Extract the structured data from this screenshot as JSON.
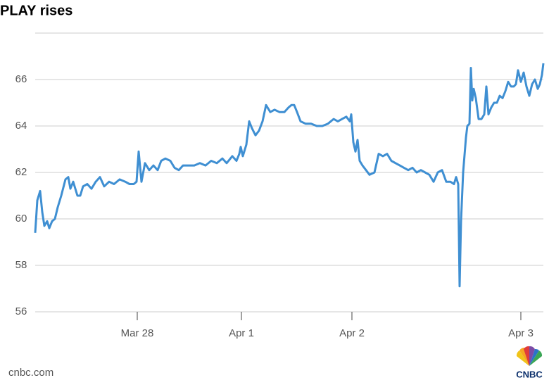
{
  "chart_data": {
    "type": "line",
    "title": "PLAY rises",
    "source": "cnbc.com",
    "logo": "CNBC",
    "x": [
      0,
      3,
      7,
      10,
      13,
      17,
      20,
      24,
      28,
      32,
      37,
      43,
      47,
      50,
      54,
      60,
      64,
      68,
      74,
      80,
      86,
      92,
      98,
      105,
      112,
      120,
      128,
      134,
      140,
      144,
      147,
      151,
      156,
      162,
      168,
      174,
      179,
      185,
      192,
      198,
      204,
      210,
      218,
      226,
      234,
      242,
      250,
      258,
      266,
      272,
      280,
      286,
      290,
      292,
      295,
      300,
      304,
      308,
      313,
      318,
      323,
      328,
      334,
      340,
      347,
      354,
      360,
      364,
      368,
      372,
      377,
      384,
      392,
      400,
      408,
      416,
      424,
      430,
      436,
      442,
      447,
      449,
      452,
      455,
      458,
      461,
      465,
      470,
      475,
      482,
      488,
      494,
      500,
      506,
      512,
      518,
      524,
      530,
      536,
      542,
      548,
      554,
      560,
      566,
      572,
      578,
      584,
      590,
      595,
      598,
      601,
      603,
      605,
      608,
      612,
      614,
      617,
      619,
      621,
      623,
      626,
      630,
      634,
      638,
      641,
      644,
      648,
      652,
      656,
      660,
      664,
      668,
      672,
      676,
      680,
      683,
      686,
      690,
      694,
      698,
      702,
      706,
      710,
      714,
      717,
      720,
      722
    ],
    "series": [
      {
        "name": "PLAY",
        "color": "#3f8fd2",
        "values": [
          59.4,
          60.8,
          61.2,
          60.3,
          59.7,
          59.9,
          59.6,
          59.9,
          60.0,
          60.5,
          61.0,
          61.7,
          61.8,
          61.3,
          61.6,
          61.0,
          61.0,
          61.4,
          61.5,
          61.3,
          61.6,
          61.8,
          61.4,
          61.6,
          61.5,
          61.7,
          61.6,
          61.5,
          61.5,
          61.6,
          62.9,
          61.6,
          62.4,
          62.1,
          62.3,
          62.1,
          62.5,
          62.6,
          62.5,
          62.2,
          62.1,
          62.3,
          62.3,
          62.3,
          62.4,
          62.3,
          62.5,
          62.4,
          62.6,
          62.4,
          62.7,
          62.5,
          62.8,
          63.1,
          62.7,
          63.2,
          64.2,
          63.9,
          63.6,
          63.8,
          64.2,
          64.9,
          64.6,
          64.7,
          64.6,
          64.6,
          64.8,
          64.9,
          64.9,
          64.6,
          64.2,
          64.1,
          64.1,
          64.0,
          64.0,
          64.1,
          64.3,
          64.2,
          64.3,
          64.4,
          64.2,
          64.5,
          63.3,
          62.9,
          63.4,
          62.5,
          62.3,
          62.1,
          61.9,
          62.0,
          62.8,
          62.7,
          62.8,
          62.5,
          62.4,
          62.3,
          62.2,
          62.1,
          62.2,
          62.0,
          62.1,
          62.0,
          61.9,
          61.6,
          62.0,
          62.1,
          61.6,
          61.6,
          61.5,
          61.8,
          61.5,
          57.1,
          59.9,
          62.0,
          63.5,
          64.0,
          64.1,
          66.5,
          65.1,
          65.6,
          65.2,
          64.3,
          64.3,
          64.5,
          65.7,
          64.5,
          64.8,
          65.0,
          65.0,
          65.3,
          65.2,
          65.5,
          65.9,
          65.7,
          65.7,
          65.8,
          66.4,
          65.9,
          66.3,
          65.7,
          65.3,
          65.8,
          66.0,
          65.6,
          65.8,
          66.2,
          66.7
        ]
      }
    ],
    "xlim": [
      0,
      722
    ],
    "xticks": [
      {
        "value": 145,
        "label": "Mar 28"
      },
      {
        "value": 293,
        "label": "Apr 1"
      },
      {
        "value": 450,
        "label": "Apr 2"
      },
      {
        "value": 690,
        "label": "Apr 3"
      }
    ],
    "ylim": [
      56,
      68
    ],
    "yticks": [
      56,
      58,
      60,
      62,
      64,
      66
    ],
    "grid": true
  }
}
